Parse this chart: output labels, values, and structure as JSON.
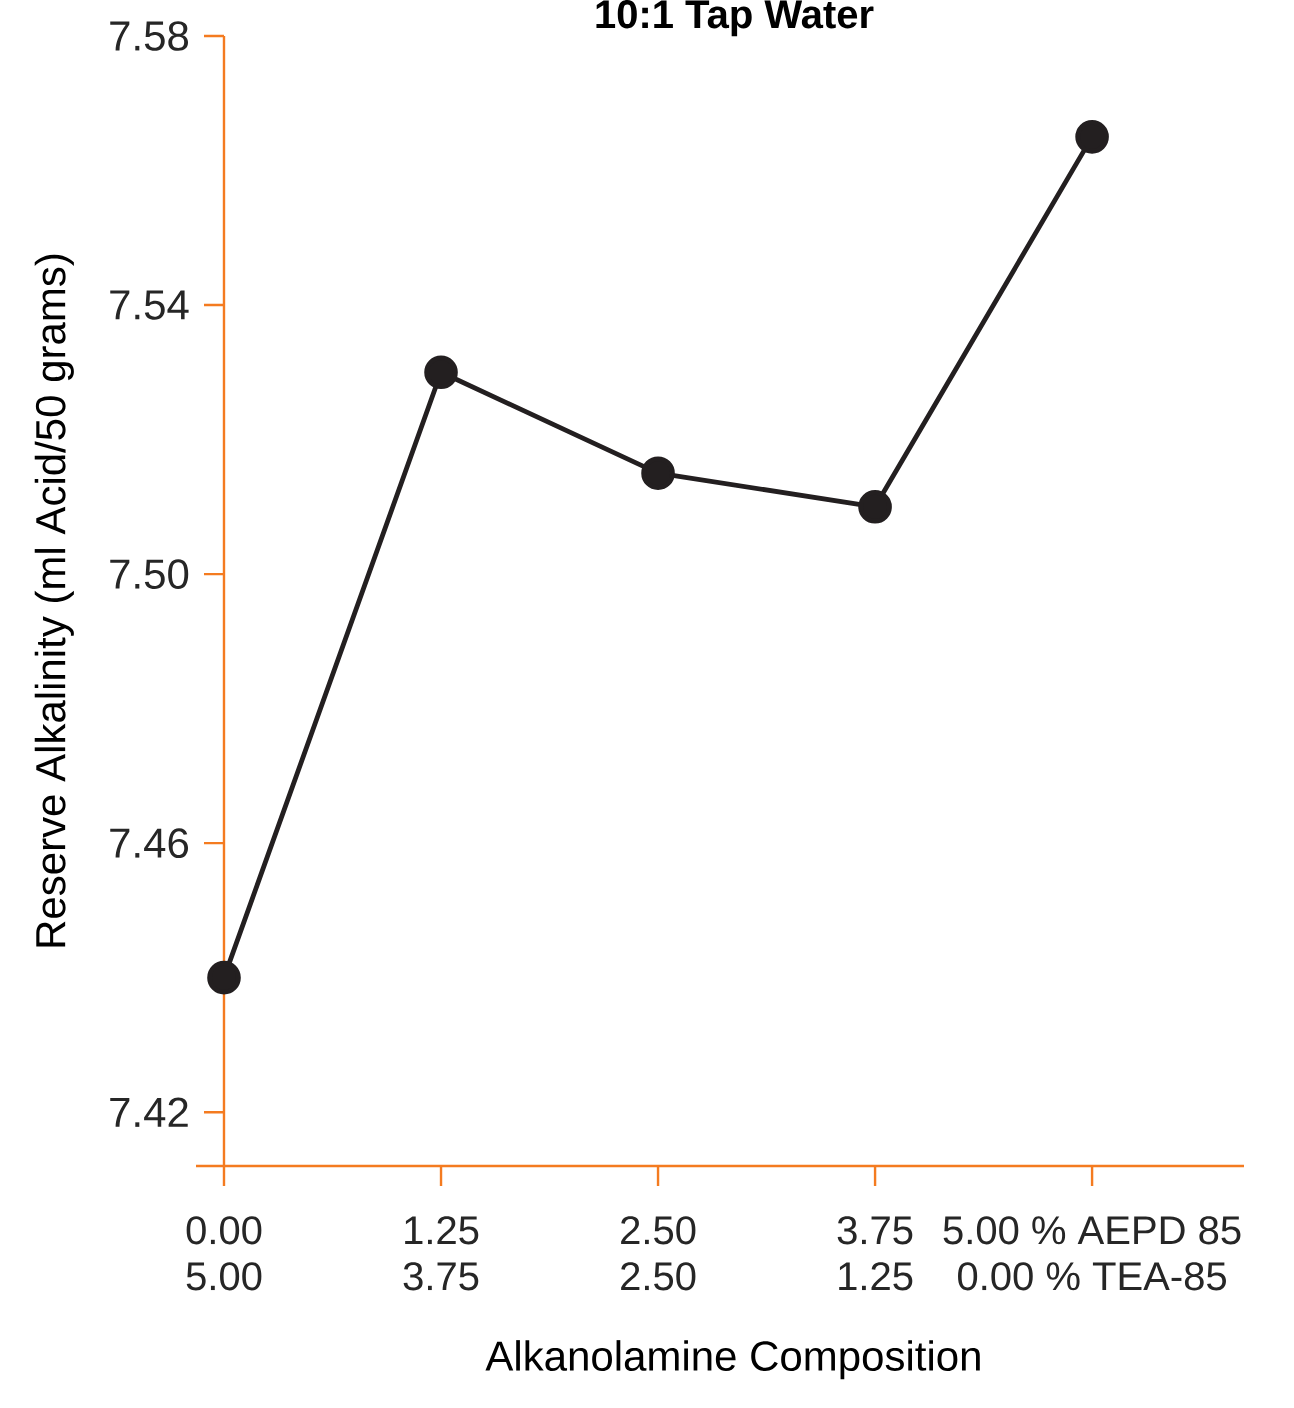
{
  "chart_data": {
    "type": "line",
    "title": "10:1 Tap Water",
    "xlabel": "Alkanolamine Composition",
    "ylabel": "Reserve Alkalinity (ml Acid/50 grams)",
    "categories": [
      "0.00\n5.00",
      "1.25\n3.75",
      "2.50\n2.50",
      "3.75\n1.25",
      "5.00 % AEPD 85\n0.00 % TEA-85"
    ],
    "series": [
      {
        "color": "#231f20",
        "values": [
          7.44,
          7.53,
          7.515,
          7.51,
          7.565
        ]
      }
    ],
    "ylim": [
      7.412,
      7.58
    ],
    "yticks": [
      7.42,
      7.46,
      {
        "value": 7.5,
        "label": "7.50"
      },
      7.54,
      7.58
    ],
    "marker": "circle",
    "line_style": "solid"
  }
}
